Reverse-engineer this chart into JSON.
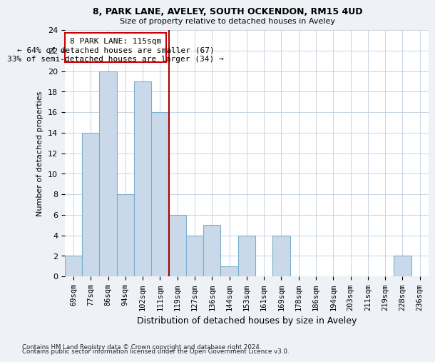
{
  "title1": "8, PARK LANE, AVELEY, SOUTH OCKENDON, RM15 4UD",
  "title2": "Size of property relative to detached houses in Aveley",
  "xlabel": "Distribution of detached houses by size in Aveley",
  "ylabel": "Number of detached properties",
  "categories": [
    "69sqm",
    "77sqm",
    "86sqm",
    "94sqm",
    "102sqm",
    "111sqm",
    "119sqm",
    "127sqm",
    "136sqm",
    "144sqm",
    "153sqm",
    "161sqm",
    "169sqm",
    "178sqm",
    "186sqm",
    "194sqm",
    "203sqm",
    "211sqm",
    "219sqm",
    "228sqm",
    "236sqm"
  ],
  "values": [
    2,
    14,
    20,
    8,
    19,
    16,
    6,
    4,
    5,
    1,
    4,
    0,
    4,
    0,
    0,
    0,
    0,
    0,
    0,
    2,
    0
  ],
  "bar_color": "#c9d9ea",
  "bar_edge_color": "#7ab0ce",
  "red_line_x": 5.5,
  "ann_text1": "8 PARK LANE: 115sqm",
  "ann_text2": "← 64% of detached houses are smaller (67)",
  "ann_text3": "33% of semi-detached houses are larger (34) →",
  "ylim": [
    0,
    24
  ],
  "yticks": [
    0,
    2,
    4,
    6,
    8,
    10,
    12,
    14,
    16,
    18,
    20,
    22,
    24
  ],
  "footer1": "Contains HM Land Registry data © Crown copyright and database right 2024.",
  "footer2": "Contains public sector information licensed under the Open Government Licence v3.0.",
  "bg_color": "#eef2f7",
  "plot_bg": "#ffffff",
  "grid_color": "#c8d4e0"
}
